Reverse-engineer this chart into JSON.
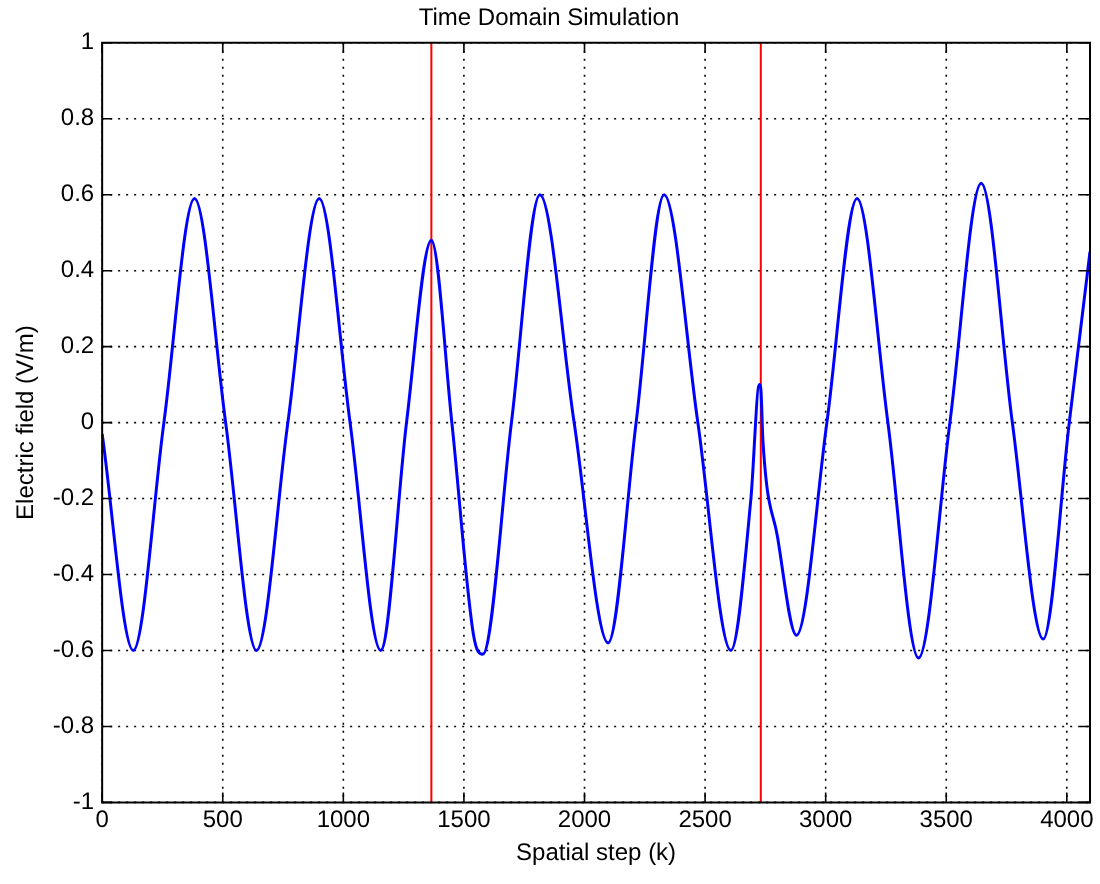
{
  "chart_data": {
    "type": "line",
    "title": "Time Domain Simulation",
    "xlabel": "Spatial step (k)",
    "ylabel": "Electric field (V/m)",
    "series": [
      {
        "color": "#0000ff",
        "x": [
          0,
          129,
          256,
          383,
          512,
          640,
          770,
          900,
          1028,
          1155,
          1262,
          1365,
          1450,
          1540,
          1578,
          1697,
          1815,
          1957,
          2098,
          2214,
          2330,
          2470,
          2607,
          2690,
          2725,
          2731,
          2740,
          2800,
          2879,
          3005,
          3130,
          3258,
          3385,
          3515,
          3645,
          3774,
          3902,
          4010,
          4096
        ],
        "values": [
          -0.03,
          -0.6,
          0,
          0.59,
          0,
          -0.6,
          0,
          0.59,
          0,
          -0.6,
          0,
          0.48,
          0,
          -0.56,
          -0.61,
          0,
          0.6,
          0,
          -0.58,
          0,
          0.6,
          0,
          -0.6,
          -0.2,
          0.1,
          0.09,
          -0.05,
          -0.3,
          -0.56,
          0,
          0.59,
          0,
          -0.62,
          0,
          0.63,
          0,
          -0.57,
          0,
          0.45
        ]
      }
    ],
    "xlim": [
      0,
      4096
    ],
    "xticks": [
      0,
      500,
      1000,
      1500,
      2000,
      2500,
      3000,
      3500,
      4000
    ],
    "ylim": [
      -1,
      1
    ],
    "yticks": [
      -1,
      -0.8,
      -0.6,
      -0.4,
      -0.2,
      0,
      0.2,
      0.4,
      0.6,
      0.8,
      1
    ],
    "grid": true,
    "legend": false,
    "marker": "none",
    "line_style": "solid",
    "ref_lines": [
      {
        "axis": "x",
        "value": 1365,
        "color": "#ff0000"
      },
      {
        "axis": "x",
        "value": 2731,
        "color": "#ff0000"
      }
    ]
  }
}
